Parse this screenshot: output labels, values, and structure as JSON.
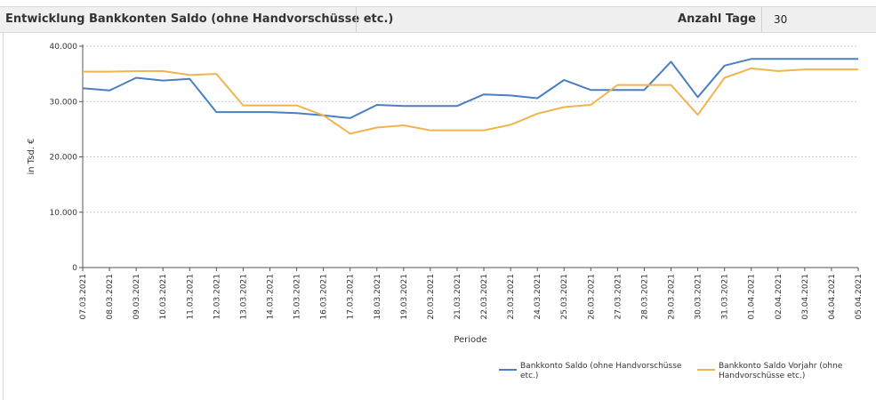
{
  "header": {
    "title": "Entwicklung Bankkonten Saldo (ohne Handvorschüsse etc.)",
    "days_label": "Anzahl Tage",
    "days_value": "30"
  },
  "chart_data": {
    "type": "line",
    "xlabel": "Periode",
    "ylabel": "in Tsd. €",
    "ylim": [
      0,
      40000
    ],
    "y_ticks": [
      0,
      10000,
      20000,
      30000,
      40000
    ],
    "y_tick_labels": [
      "0",
      "10.000",
      "20.000",
      "30.000",
      "40.000"
    ],
    "grid": true,
    "legend_position": "bottom-right",
    "categories": [
      "07.03.2021",
      "08.03.2021",
      "09.03.2021",
      "10.03.2021",
      "11.03.2021",
      "12.03.2021",
      "13.03.2021",
      "14.03.2021",
      "15.03.2021",
      "16.03.2021",
      "17.03.2021",
      "18.03.2021",
      "19.03.2021",
      "20.03.2021",
      "21.03.2021",
      "22.03.2021",
      "23.03.2021",
      "24.03.2021",
      "25.03.2021",
      "26.03.2021",
      "27.03.2021",
      "28.03.2021",
      "29.03.2021",
      "30.03.2021",
      "31.03.2021",
      "01.04.2021",
      "02.04.2021",
      "03.04.2021",
      "04.04.2021",
      "05.04.2021"
    ],
    "series": [
      {
        "name": "Bankkonto Saldo (ohne Handvorschüsse etc.)",
        "legend_lines": [
          "Bankkonto Saldo (ohne Handvorschüsse",
          "etc.)"
        ],
        "color": "#4a7fc1",
        "values": [
          32400,
          32000,
          34300,
          33800,
          34100,
          28100,
          28100,
          28100,
          27900,
          27500,
          27000,
          29400,
          29200,
          29200,
          29200,
          31300,
          31100,
          30600,
          33900,
          32100,
          32100,
          32100,
          37200,
          30800,
          36500,
          37700,
          37700,
          37700,
          37700,
          37700
        ]
      },
      {
        "name": "Bankkonto Saldo Vorjahr (ohne Handvorschüsse etc.)",
        "legend_lines": [
          "Bankkonto Saldo Vorjahr (ohne",
          "Handvorschüsse etc.)"
        ],
        "color": "#f0b450",
        "values": [
          35400,
          35400,
          35500,
          35500,
          34800,
          35000,
          29300,
          29300,
          29300,
          27500,
          24200,
          25300,
          25700,
          24800,
          24800,
          24800,
          25800,
          27800,
          29000,
          29400,
          33000,
          33000,
          33000,
          27600,
          34300,
          36000,
          35500,
          35800,
          35800,
          35800
        ]
      }
    ]
  }
}
